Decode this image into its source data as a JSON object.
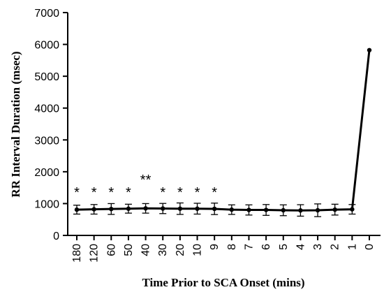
{
  "chart_data": {
    "type": "line",
    "title": "",
    "xlabel": "Time Prior to SCA Onset (mins)",
    "ylabel": "RR Interval  Duration  (msec)",
    "ylim": [
      0,
      7000
    ],
    "yticks": [
      "0",
      "1000",
      "2000",
      "3000",
      "4000",
      "5000",
      "6000",
      "7000"
    ],
    "categories": [
      "180",
      "120",
      "60",
      "50",
      "40",
      "30",
      "20",
      "10",
      "9",
      "8",
      "7",
      "6",
      "5",
      "4",
      "3",
      "2",
      "1",
      "0"
    ],
    "series": [
      {
        "values": [
          810,
          820,
          830,
          840,
          850,
          845,
          840,
          840,
          835,
          810,
          800,
          800,
          790,
          785,
          790,
          810,
          820,
          5820
        ],
        "error": [
          140,
          150,
          170,
          140,
          150,
          160,
          180,
          170,
          180,
          150,
          160,
          170,
          170,
          180,
          200,
          170,
          150,
          0
        ]
      }
    ],
    "significance": [
      "*",
      "*",
      "*",
      "*",
      "**",
      "*",
      "*",
      "*",
      "*",
      "",
      "",
      "",
      "",
      "",
      "",
      "",
      "",
      ""
    ],
    "grid": false
  }
}
